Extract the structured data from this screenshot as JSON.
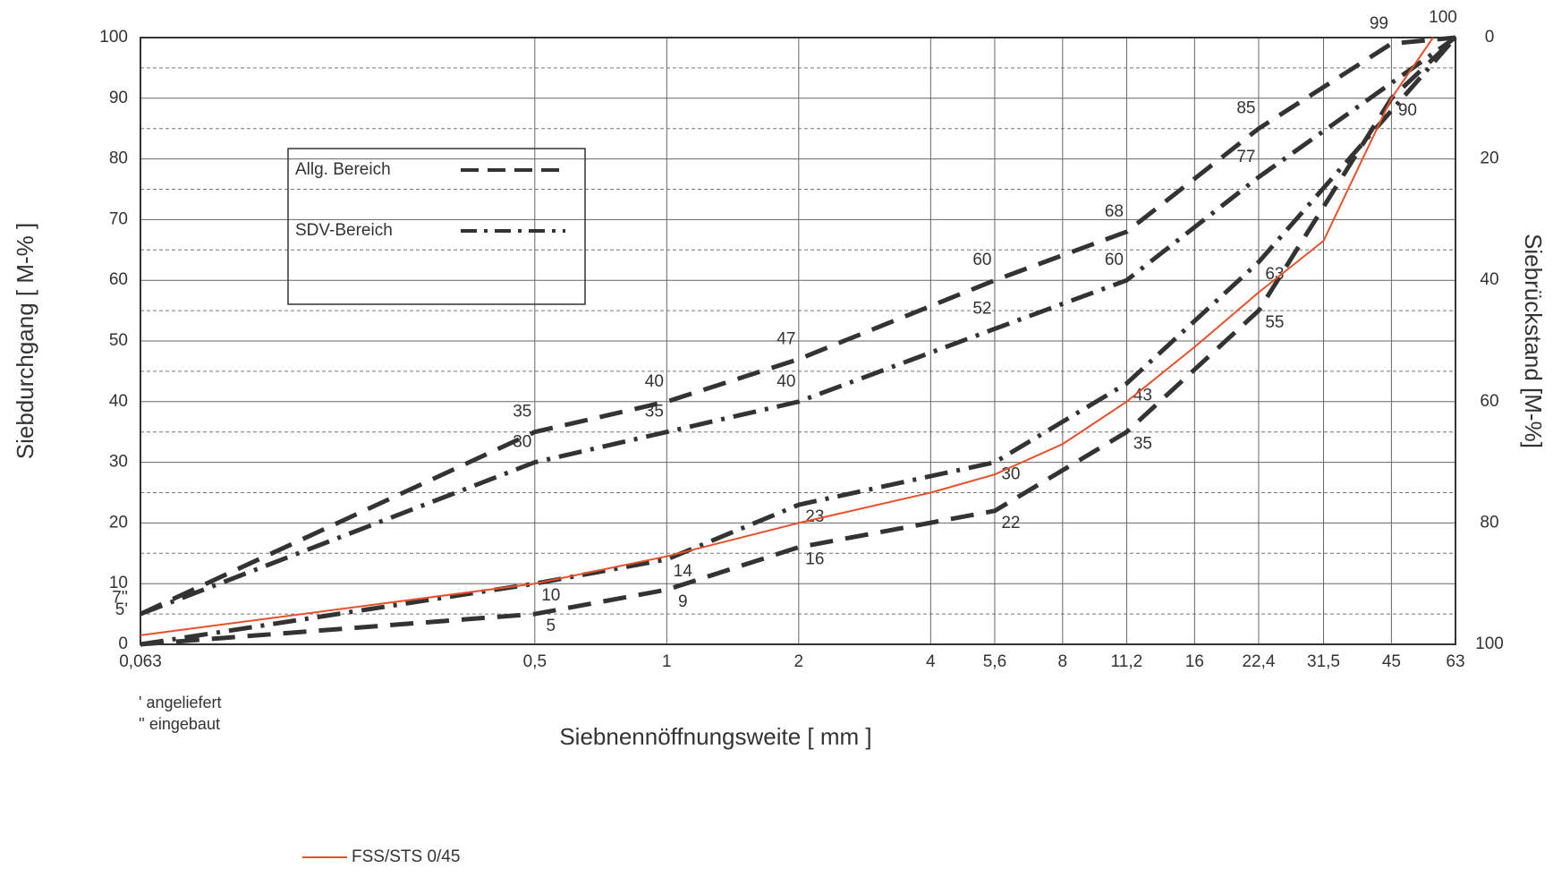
{
  "chart_data": {
    "type": "grading-curve",
    "x_label": "Siebnennöffnungsweite [ mm ]",
    "y_label": "Siebdurchgang [ M-% ]",
    "y2_label": "Siebrückstand [M-%]",
    "x_log": true,
    "xlim": [
      0.063,
      63
    ],
    "xticks": [
      {
        "value": 0.063,
        "label": "0,063"
      },
      {
        "value": 0.5,
        "label": "0,5"
      },
      1,
      2,
      4,
      {
        "value": 5.6,
        "label": "5,6"
      },
      8,
      {
        "value": 11.2,
        "label": "11,2"
      },
      16,
      {
        "value": 22.4,
        "label": "22,4"
      },
      {
        "value": 31.5,
        "label": "31,5"
      },
      45,
      63
    ],
    "ylim": [
      0,
      100
    ],
    "yticks": [
      0,
      {
        "value": 5,
        "label": "5'"
      },
      {
        "value": 7,
        "label": "7''"
      },
      10,
      20,
      30,
      40,
      50,
      60,
      70,
      80,
      90,
      100
    ],
    "minor_yticks": [
      5,
      15,
      25,
      35,
      45,
      55,
      65,
      75,
      85,
      95
    ],
    "y2lim": [
      100,
      0
    ],
    "y2ticks": [
      0,
      20,
      40,
      60,
      80,
      100
    ],
    "grid": true,
    "footnotes": [
      "' angeliefert",
      "'' eingebaut"
    ],
    "series": [
      {
        "name": "Allg. Bereich",
        "color": "#333333",
        "dash": "dashed",
        "upper": {
          "x": [
            0.063,
            0.5,
            1,
            2,
            5.6,
            11.2,
            22.4,
            45,
            63
          ],
          "values": [
            5,
            35,
            40,
            47,
            60,
            68,
            85,
            99,
            100
          ],
          "value_labels": [
            null,
            "35",
            "40",
            "47",
            "60",
            "68",
            "85",
            "99",
            "100"
          ]
        },
        "lower": {
          "x": [
            0.063,
            0.5,
            1,
            2,
            5.6,
            11.2,
            22.4,
            45,
            63
          ],
          "values": [
            0,
            5,
            9,
            16,
            22,
            35,
            55,
            90,
            100
          ],
          "value_labels": [
            null,
            "5",
            "9",
            "16",
            "22",
            "35",
            "55",
            "90",
            null
          ]
        }
      },
      {
        "name": "SDV-Bereich",
        "color": "#333333",
        "dash": "dashdot",
        "upper": {
          "x": [
            0.063,
            0.5,
            1,
            2,
            5.6,
            11.2,
            22.4,
            63
          ],
          "values": [
            5,
            30,
            35,
            40,
            52,
            60,
            77,
            100
          ],
          "value_labels": [
            null,
            "30",
            "35",
            "40",
            "52",
            "60",
            "77",
            null
          ]
        },
        "lower": {
          "x": [
            0.063,
            0.5,
            1,
            2,
            5.6,
            11.2,
            22.4,
            63
          ],
          "values": [
            0,
            10,
            14,
            23,
            30,
            43,
            63,
            100
          ],
          "value_labels": [
            null,
            "10",
            "14",
            "23",
            "30",
            "43",
            "63",
            null
          ]
        }
      },
      {
        "name": "FSS/STS 0/45",
        "color": "#e8502a",
        "dash": "solid",
        "x": [
          0.063,
          0.5,
          1,
          2,
          4,
          5.6,
          8,
          11.2,
          16,
          22.4,
          31.5,
          45,
          56
        ],
        "values": [
          1.5,
          10,
          14.5,
          20,
          25,
          28,
          33,
          40,
          49,
          58,
          66.5,
          90,
          100
        ]
      }
    ]
  }
}
